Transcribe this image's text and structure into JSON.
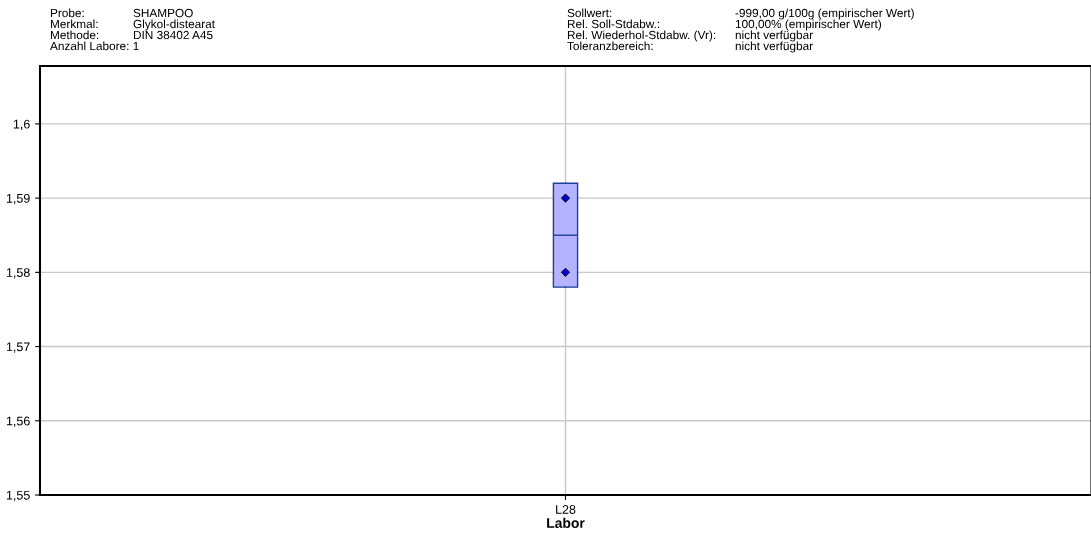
{
  "chart_data": {
    "type": "box",
    "categories": [
      "L28"
    ],
    "boxes": [
      {
        "low": 1.578,
        "q1": 1.578,
        "median": 1.585,
        "q3": 1.592,
        "high": 1.592
      }
    ],
    "color": "#b3b3ff",
    "series": [
      {
        "type": "scatter",
        "x": [
          "L28",
          "L28"
        ],
        "values": [
          1.59,
          1.58
        ],
        "color": "#0000cc"
      }
    ],
    "marker": "diamond",
    "xlabel": "Labor",
    "ylim": [
      1.55,
      1.6078
    ],
    "yticks": [
      {
        "value": 1.55,
        "label": "1,55"
      },
      {
        "value": 1.56,
        "label": "1,56"
      },
      {
        "value": 1.57,
        "label": "1,57"
      },
      {
        "value": 1.58,
        "label": "1,58"
      },
      {
        "value": 1.59,
        "label": "1,59"
      },
      {
        "value": 1.6,
        "label": "1,6"
      }
    ],
    "grid": true,
    "annotations": [
      "Probe:",
      "SHAMPOO",
      "Merkmal:",
      "Glykol-distearat",
      "Methode:",
      "DIN 38402 A45",
      "Anzahl Labore: 1",
      "Sollwert:",
      "-999,00 g/100g (empirischer Wert)",
      "Rel. Soll-Stdabw.:",
      "100,00% (empirischer Wert)",
      "Rel. Wiederhol-Stdabw. (Vr):",
      "nicht verfügbar",
      "Toleranzbereich:",
      "nicht verfügbar"
    ]
  }
}
